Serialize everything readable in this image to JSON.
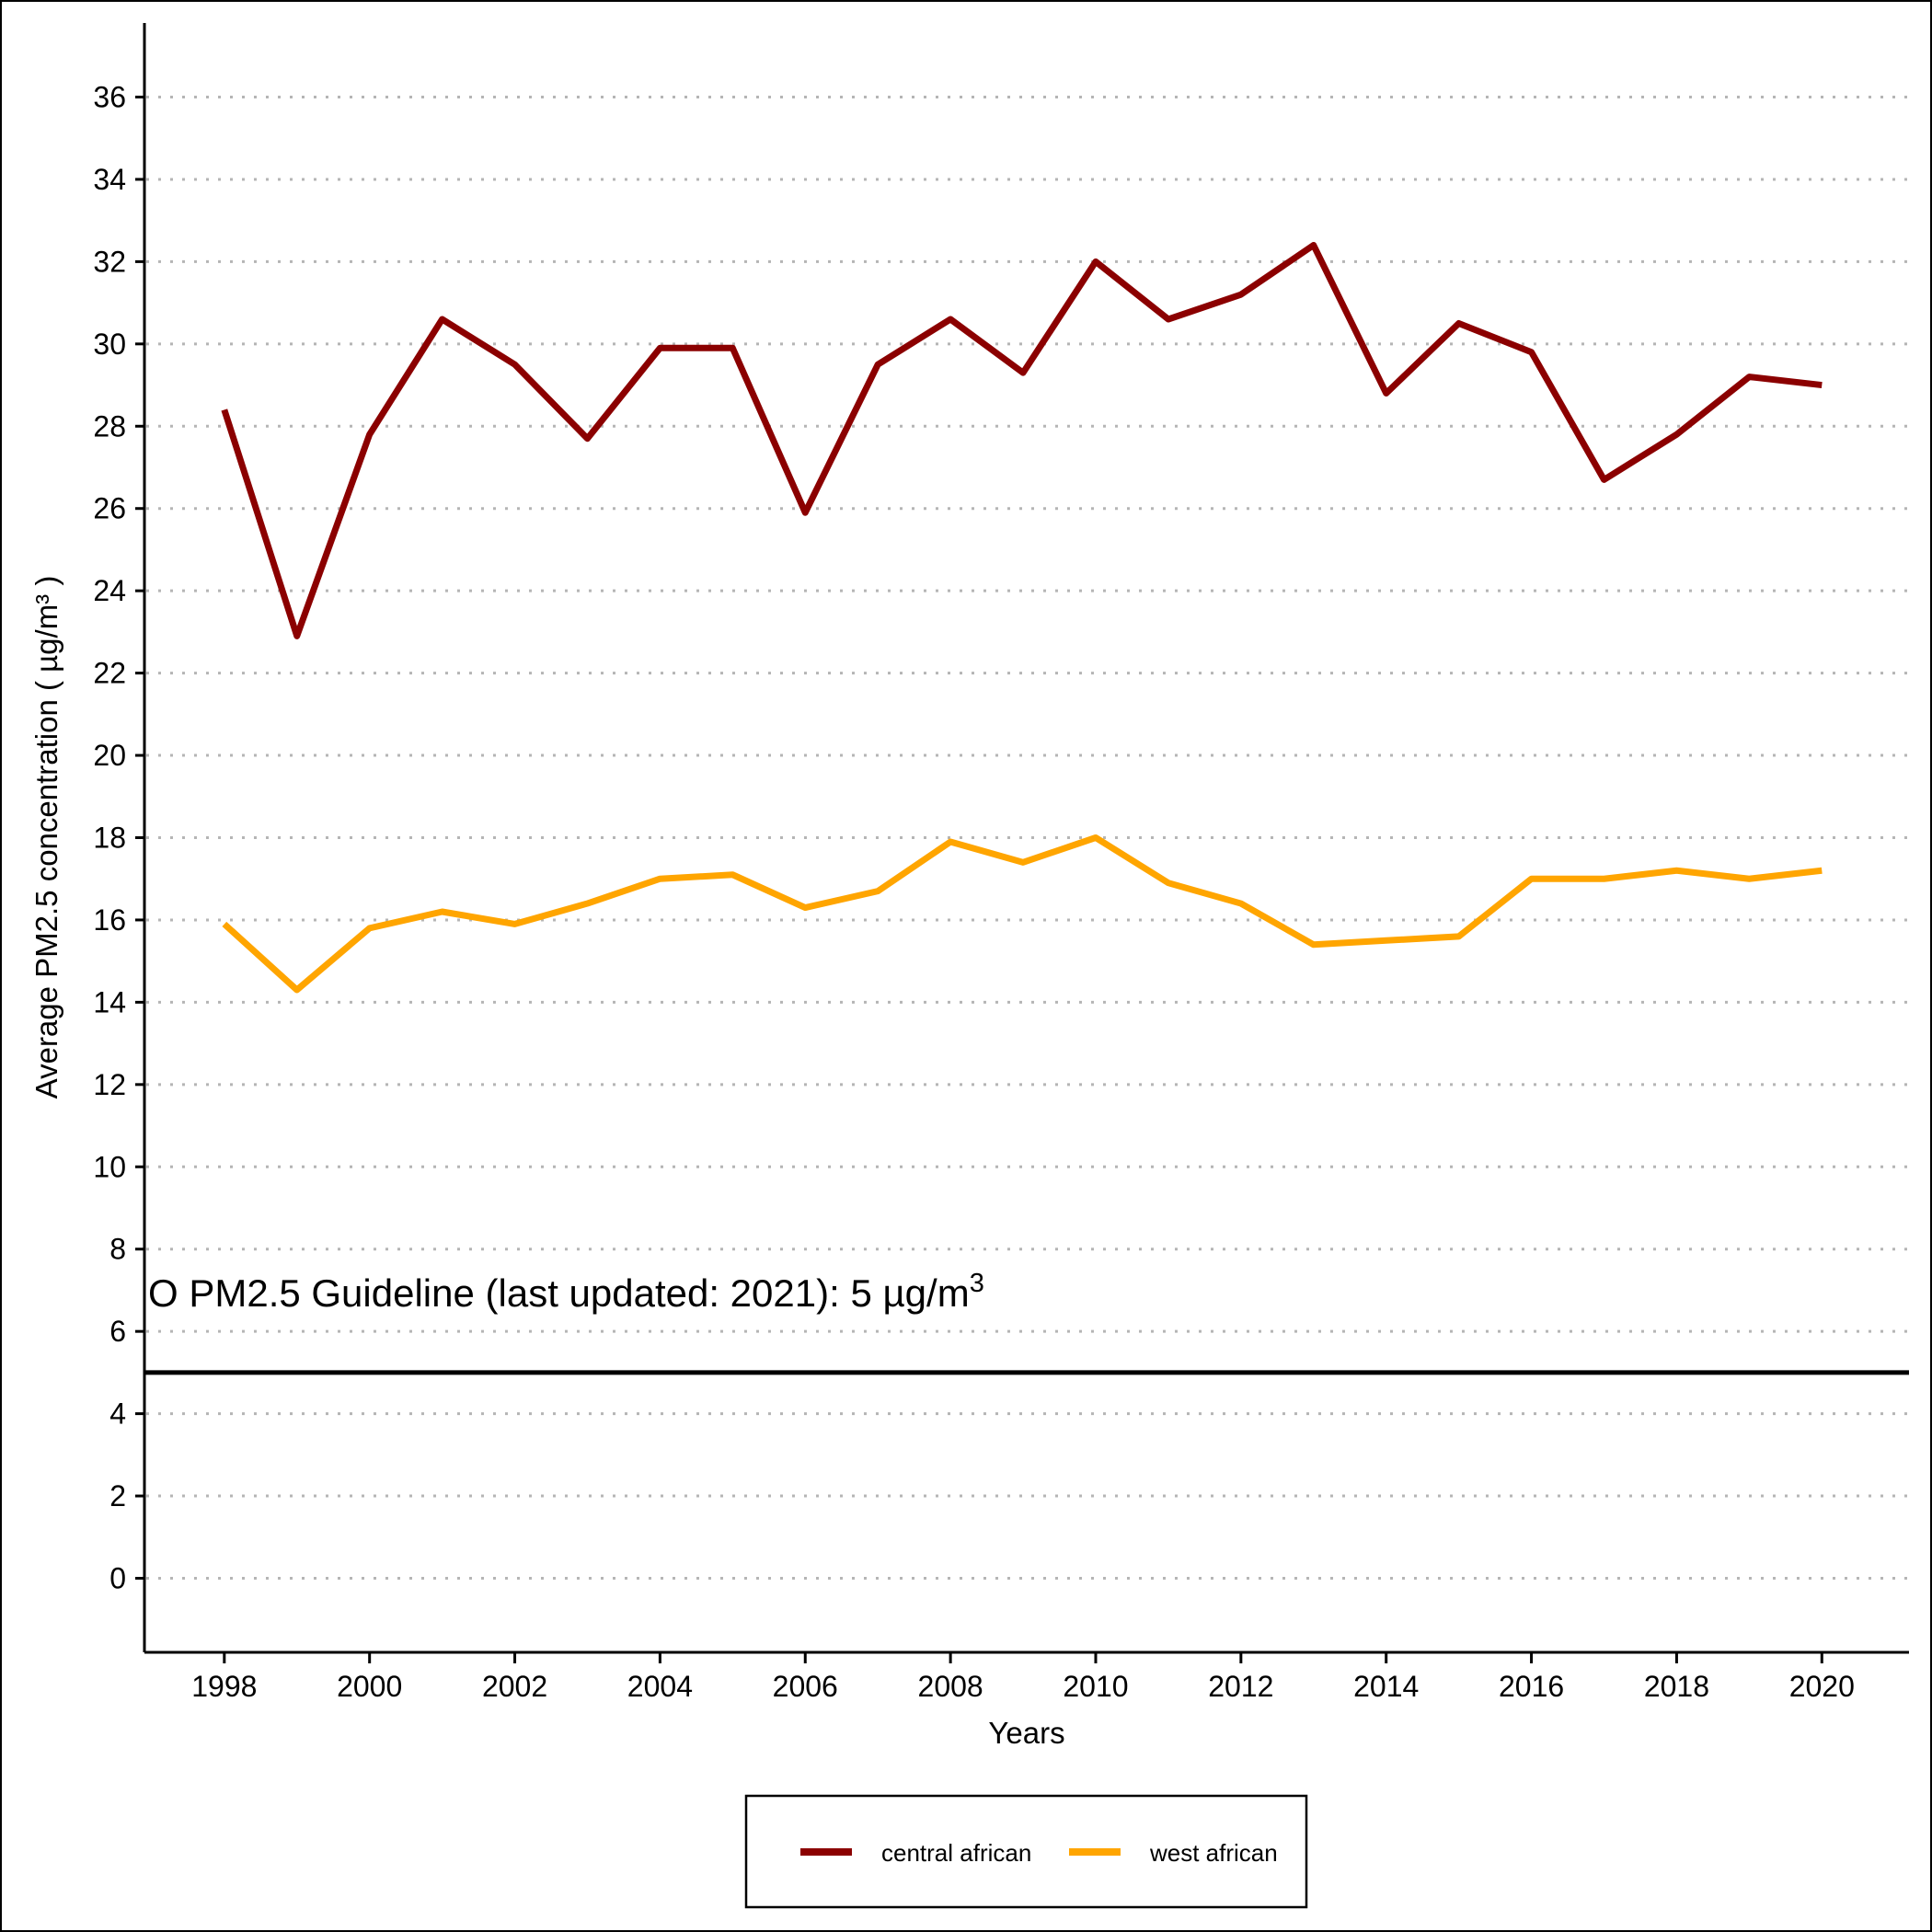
{
  "chart_data": {
    "type": "line",
    "xlabel": "Years",
    "ylabel": "Average PM2.5 concentration ( µg/m³ )",
    "ylim": [
      -1.8,
      37.8
    ],
    "xlim": [
      1996.9,
      2021.2
    ],
    "grid": "horizontal dotted",
    "x_ticks": [
      "1998",
      "2000",
      "2002",
      "2004",
      "2006",
      "2008",
      "2010",
      "2012",
      "2014",
      "2016",
      "2018",
      "2020"
    ],
    "y_ticks": [
      "0",
      "2",
      "4",
      "6",
      "8",
      "10",
      "12",
      "14",
      "16",
      "18",
      "20",
      "22",
      "24",
      "26",
      "28",
      "30",
      "32",
      "34",
      "36"
    ],
    "x": [
      1998,
      1999,
      2000,
      2001,
      2002,
      2003,
      2004,
      2005,
      2006,
      2007,
      2008,
      2009,
      2010,
      2011,
      2012,
      2013,
      2014,
      2015,
      2016,
      2017,
      2018,
      2019,
      2020
    ],
    "series": [
      {
        "name": "central african",
        "color": "#8B0000",
        "values": [
          28.4,
          22.9,
          27.8,
          30.6,
          29.5,
          27.7,
          29.9,
          29.9,
          25.9,
          29.5,
          30.6,
          29.3,
          32.0,
          30.6,
          31.2,
          32.4,
          28.8,
          30.5,
          29.8,
          26.7,
          27.8,
          29.2,
          29.0
        ]
      },
      {
        "name": "west african",
        "color": "#FFA500",
        "values": [
          15.9,
          14.3,
          15.8,
          16.2,
          15.9,
          16.4,
          17.0,
          17.1,
          16.3,
          16.7,
          17.9,
          17.4,
          18.0,
          16.9,
          16.4,
          15.4,
          15.5,
          15.6,
          17.0,
          17.0,
          17.2,
          17.0,
          17.2
        ]
      }
    ],
    "reference_line": {
      "value": 5,
      "label_prefix": "O PM2.5 Guideline (last updated: 2021): 5 µg/m",
      "label_superscript": "3"
    },
    "legend": {
      "placement": "bottom-center",
      "entries": [
        "central african",
        "west african"
      ]
    }
  }
}
